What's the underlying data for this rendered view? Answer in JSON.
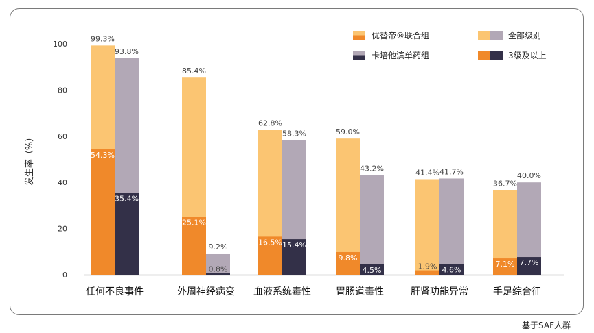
{
  "chart_data": {
    "type": "bar",
    "ylabel": "发生率（%）",
    "ylim": [
      0,
      100
    ],
    "yticks": [
      0,
      20,
      40,
      60,
      80,
      100
    ],
    "categories": [
      "任何不良事件",
      "外周神经病变",
      "血液系统毒性",
      "胃肠道毒性",
      "肝肾功能异常",
      "手足综合征"
    ],
    "series": [
      {
        "name": "优替帝®联合组",
        "all_grade": [
          99.3,
          85.4,
          62.8,
          59.0,
          41.4,
          36.7
        ],
        "grade3plus": [
          54.3,
          25.1,
          16.5,
          9.8,
          1.9,
          7.1
        ],
        "all_grade_labels": [
          "99.3%",
          "85.4%",
          "62.8%",
          "59.0%",
          "41.4%",
          "36.7%"
        ],
        "grade3plus_labels": [
          "54.3%",
          "25.1%",
          "16.5%",
          "9.8%",
          "1.9%",
          "7.1%"
        ],
        "color_all": "#fbc572",
        "color_g3": "#f0892a"
      },
      {
        "name": "卡培他滨单药组",
        "all_grade": [
          93.8,
          9.2,
          58.3,
          43.2,
          41.7,
          40.0
        ],
        "grade3plus": [
          35.4,
          0.8,
          15.4,
          4.5,
          4.6,
          7.7
        ],
        "all_grade_labels": [
          "93.8%",
          "9.2%",
          "58.3%",
          "43.2%",
          "41.7%",
          "40.0%"
        ],
        "grade3plus_labels": [
          "35.4%",
          "0.8%",
          "15.4%",
          "4.5%",
          "4.6%",
          "7.7%"
        ],
        "color_all": "#b2a8b6",
        "color_g3": "#333048"
      }
    ],
    "legend": {
      "placement": "top-right",
      "grade_all_label": "全部级别",
      "grade3_label": "3级及以上"
    }
  },
  "footnote": "基于SAF人群"
}
